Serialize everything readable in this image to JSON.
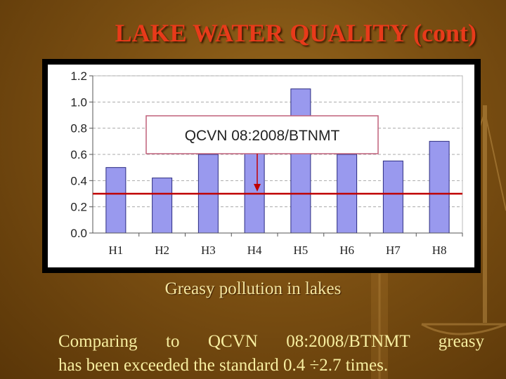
{
  "slide": {
    "title": "LAKE  WATER QUALITY (cont)",
    "caption": "Greasy pollution in lakes",
    "text_line1": "Comparing  to  QCVN  08:2008/BTNMT  greasy",
    "text_line2": "has been exceeded the standard 0.4 ÷2.7 times."
  },
  "colors": {
    "title": "#e83a1a",
    "bar_fill": "#9999ee",
    "bar_stroke": "#2b2b80",
    "standard_line": "#c00000",
    "annotation_border": "#c0607a"
  },
  "chart_data": {
    "type": "bar",
    "categories": [
      "H1",
      "H2",
      "H3",
      "H4",
      "H5",
      "H6",
      "H7",
      "H8"
    ],
    "values": [
      0.5,
      0.42,
      0.6,
      0.65,
      1.1,
      0.6,
      0.55,
      0.7
    ],
    "ylim": [
      0,
      1.2
    ],
    "yticks": [
      "0.0",
      "0.2",
      "0.4",
      "0.6",
      "0.8",
      "1.0",
      "1.2"
    ],
    "ytick_values": [
      0,
      0.2,
      0.4,
      0.6,
      0.8,
      1.0,
      1.2
    ],
    "grid": true,
    "reference_line": {
      "value": 0.3
    },
    "annotation": {
      "text": "QCVN 08:2008/BTNMT",
      "points_to": 0.3
    },
    "xlabel": "",
    "ylabel": "",
    "title": ""
  }
}
